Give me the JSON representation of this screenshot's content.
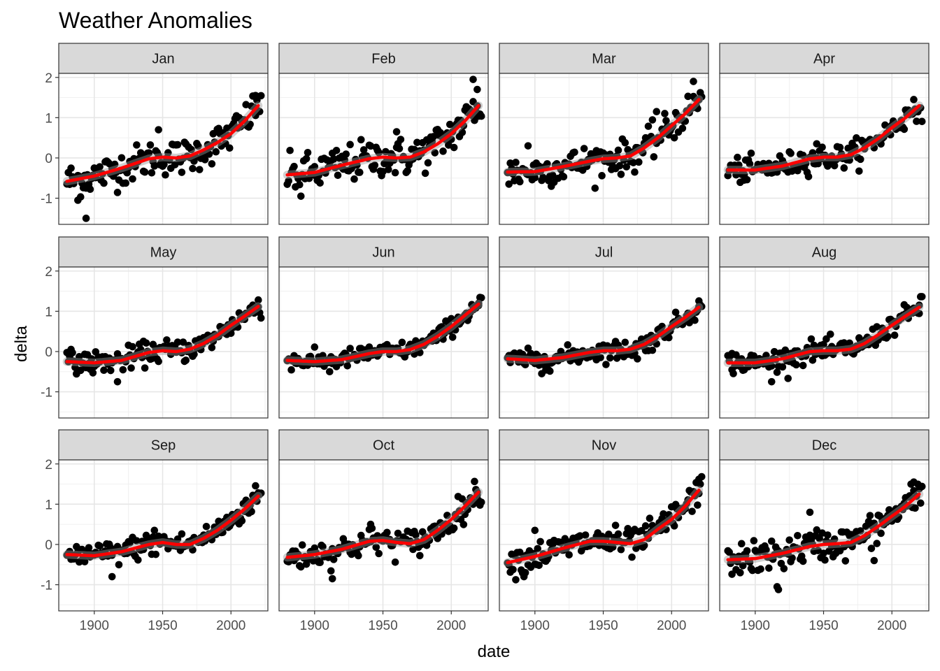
{
  "chart_data": {
    "type": "scatter",
    "title": "Weather Anomalies",
    "xlabel": "date",
    "ylabel": "delta",
    "facets": [
      "Jan",
      "Feb",
      "Mar",
      "Apr",
      "May",
      "Jun",
      "Jul",
      "Aug",
      "Sep",
      "Oct",
      "Nov",
      "Dec"
    ],
    "facet_layout": {
      "rows": 3,
      "cols": 4
    },
    "xlim": [
      1874,
      2027
    ],
    "ylim": [
      -1.65,
      2.1
    ],
    "x_ticks": [
      1900,
      1950,
      2000
    ],
    "y_ticks": [
      -1,
      0,
      1,
      2
    ],
    "x_tick_labels": [
      "1900",
      "1950",
      "2000"
    ],
    "y_tick_labels": [
      "-1",
      "0",
      "1",
      "2"
    ],
    "point_color": "#000000",
    "smooth_color": "#ff0000",
    "grid": true,
    "years": [
      1880,
      2022
    ],
    "trend_years": [
      1880,
      1900,
      1920,
      1940,
      1950,
      1960,
      1970,
      1980,
      1990,
      2000,
      2010,
      2020
    ],
    "series": [
      {
        "month": "Jan",
        "trend": [
          -0.58,
          -0.45,
          -0.25,
          -0.02,
          0.02,
          0.0,
          0.05,
          0.2,
          0.38,
          0.6,
          0.92,
          1.3
        ],
        "outliers": [
          {
            "x": 1894,
            "y": -1.5
          },
          {
            "x": 1888,
            "y": -1.05
          },
          {
            "x": 1947,
            "y": 0.7
          },
          {
            "x": 2018,
            "y": 1.55
          }
        ]
      },
      {
        "month": "Feb",
        "trend": [
          -0.42,
          -0.36,
          -0.18,
          -0.02,
          0.02,
          0.0,
          0.02,
          0.15,
          0.35,
          0.6,
          0.92,
          1.3
        ],
        "outliers": [
          {
            "x": 1890,
            "y": -0.95
          },
          {
            "x": 2016,
            "y": 1.95
          },
          {
            "x": 2019,
            "y": 1.7
          },
          {
            "x": 1960,
            "y": 0.65
          }
        ]
      },
      {
        "month": "Mar",
        "trend": [
          -0.35,
          -0.34,
          -0.22,
          -0.08,
          -0.02,
          0.0,
          0.05,
          0.25,
          0.5,
          0.8,
          1.1,
          1.45
        ],
        "outliers": [
          {
            "x": 2016,
            "y": 1.9
          },
          {
            "x": 1989,
            "y": 1.15
          },
          {
            "x": 1895,
            "y": 0.3
          },
          {
            "x": 1881,
            "y": -0.65
          }
        ]
      },
      {
        "month": "Apr",
        "trend": [
          -0.3,
          -0.3,
          -0.2,
          -0.02,
          0.02,
          0.02,
          0.08,
          0.25,
          0.48,
          0.75,
          1.0,
          1.3
        ],
        "outliers": [
          {
            "x": 2016,
            "y": 1.45
          },
          {
            "x": 1892,
            "y": -0.55
          },
          {
            "x": 1945,
            "y": 0.35
          }
        ]
      },
      {
        "month": "May",
        "trend": [
          -0.25,
          -0.28,
          -0.22,
          -0.02,
          0.02,
          0.0,
          0.06,
          0.2,
          0.4,
          0.65,
          0.88,
          1.12
        ],
        "outliers": [
          {
            "x": 1917,
            "y": -0.75
          },
          {
            "x": 2020,
            "y": 1.28
          },
          {
            "x": 1887,
            "y": -0.55
          }
        ]
      },
      {
        "month": "Jun",
        "trend": [
          -0.22,
          -0.25,
          -0.2,
          -0.05,
          0.0,
          0.0,
          0.05,
          0.18,
          0.38,
          0.62,
          0.9,
          1.18
        ],
        "outliers": [
          {
            "x": 2020,
            "y": 1.2
          },
          {
            "x": 1911,
            "y": -0.5
          }
        ]
      },
      {
        "month": "Jul",
        "trend": [
          -0.18,
          -0.22,
          -0.15,
          -0.02,
          0.02,
          0.02,
          0.06,
          0.18,
          0.38,
          0.62,
          0.85,
          1.1
        ],
        "outliers": [
          {
            "x": 1905,
            "y": -0.55
          },
          {
            "x": 2020,
            "y": 1.12
          },
          {
            "x": 1975,
            "y": -0.18
          }
        ]
      },
      {
        "month": "Aug",
        "trend": [
          -0.28,
          -0.28,
          -0.18,
          0.0,
          0.02,
          0.02,
          0.06,
          0.2,
          0.42,
          0.65,
          0.88,
          1.1
        ],
        "outliers": [
          {
            "x": 1912,
            "y": -0.75
          },
          {
            "x": 2020,
            "y": 1.15
          },
          {
            "x": 1883,
            "y": -0.05
          }
        ]
      },
      {
        "month": "Sep",
        "trend": [
          -0.25,
          -0.28,
          -0.18,
          0.0,
          0.05,
          0.0,
          0.0,
          0.15,
          0.35,
          0.6,
          0.88,
          1.2
        ],
        "outliers": [
          {
            "x": 1913,
            "y": -0.8
          },
          {
            "x": 2016,
            "y": 1.22
          },
          {
            "x": 1944,
            "y": 0.35
          }
        ]
      },
      {
        "month": "Oct",
        "trend": [
          -0.32,
          -0.25,
          -0.12,
          0.08,
          0.1,
          0.05,
          0.02,
          0.12,
          0.35,
          0.62,
          0.95,
          1.3
        ],
        "outliers": [
          {
            "x": 1913,
            "y": -0.85
          },
          {
            "x": 2019,
            "y": 1.3
          },
          {
            "x": 1941,
            "y": 0.5
          }
        ]
      },
      {
        "month": "Nov",
        "trend": [
          -0.45,
          -0.3,
          -0.1,
          0.08,
          0.08,
          0.05,
          0.02,
          0.12,
          0.38,
          0.62,
          0.95,
          1.35
        ],
        "outliers": [
          {
            "x": 1892,
            "y": -0.8
          },
          {
            "x": 2020,
            "y": 1.62
          },
          {
            "x": 1900,
            "y": 0.35
          }
        ]
      },
      {
        "month": "Dec",
        "trend": [
          -0.38,
          -0.35,
          -0.22,
          -0.05,
          0.0,
          0.02,
          0.05,
          0.22,
          0.45,
          0.7,
          0.95,
          1.25
        ],
        "outliers": [
          {
            "x": 1917,
            "y": -1.12
          },
          {
            "x": 1916,
            "y": -1.05
          },
          {
            "x": 1940,
            "y": 0.8
          },
          {
            "x": 2016,
            "y": 1.55
          },
          {
            "x": 1987,
            "y": -0.4
          }
        ]
      }
    ]
  }
}
